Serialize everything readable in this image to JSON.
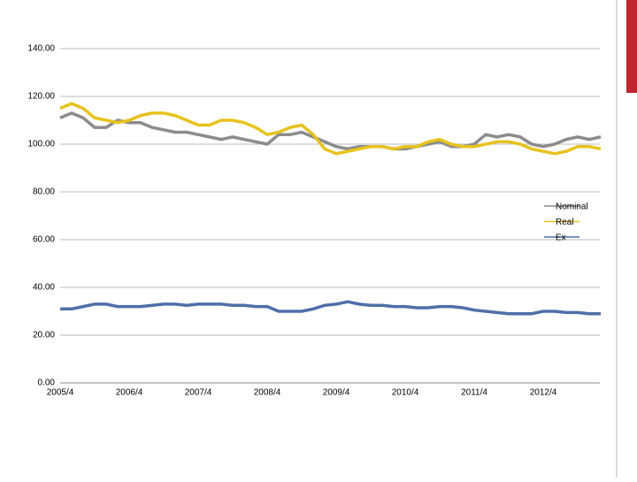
{
  "chart_data": {
    "type": "line",
    "categories": [
      "2005/4",
      null,
      null,
      null,
      null,
      null,
      "2006/4",
      null,
      null,
      null,
      null,
      null,
      "2007/4",
      null,
      null,
      null,
      null,
      null,
      "2008/4",
      null,
      null,
      null,
      null,
      null,
      "2009/4",
      null,
      null,
      null,
      null,
      null,
      "2010/4",
      null,
      null,
      null,
      null,
      null,
      "2011/4",
      null,
      null,
      null,
      null,
      null,
      "2012/4",
      null,
      null,
      null,
      null,
      null
    ],
    "series": [
      {
        "name": "Nominal",
        "color": "#8c8c8c",
        "values": [
          111,
          113,
          111,
          107,
          107,
          110,
          109,
          109,
          107,
          106,
          105,
          105,
          104,
          103,
          102,
          103,
          102,
          101,
          100,
          104,
          104,
          105,
          103,
          101,
          99,
          98,
          99,
          99,
          99,
          98,
          98,
          99,
          100,
          101,
          99,
          99,
          100,
          104,
          103,
          104,
          103,
          100,
          99,
          100,
          102,
          103,
          102,
          103
        ]
      },
      {
        "name": "Real",
        "color": "#e8c21e",
        "values": [
          115,
          117,
          115,
          111,
          110,
          109,
          110,
          112,
          113,
          113,
          112,
          110,
          108,
          108,
          110,
          110,
          109,
          107,
          104,
          105,
          107,
          108,
          104,
          98,
          96,
          97,
          98,
          99,
          99,
          98,
          99,
          99,
          101,
          102,
          100,
          99,
          99,
          100,
          101,
          101,
          100,
          98,
          97,
          96,
          97,
          99,
          99,
          98
        ]
      },
      {
        "name": "Ex",
        "color": "#4f6fa8",
        "values": [
          31,
          31,
          32,
          33,
          33,
          32,
          32,
          32,
          32.5,
          33,
          33,
          32.5,
          33,
          33,
          33,
          32.5,
          32.5,
          32,
          32,
          30,
          30,
          30,
          31,
          32.5,
          33,
          34,
          33,
          32.5,
          32.5,
          32,
          32,
          31.5,
          31.5,
          32,
          32,
          31.5,
          30.5,
          30,
          29.5,
          29,
          29,
          29,
          30,
          30,
          29.5,
          29.5,
          29,
          29
        ]
      }
    ],
    "ylim": [
      0,
      140
    ],
    "yticks": [
      {
        "value": 0,
        "label": "0.00"
      },
      {
        "value": 20,
        "label": "20.00"
      },
      {
        "value": 40,
        "label": "40.00"
      },
      {
        "value": 60,
        "label": "60.00"
      },
      {
        "value": 80,
        "label": "80.00"
      },
      {
        "value": 100,
        "label": "100.00"
      },
      {
        "value": 120,
        "label": "120.00"
      },
      {
        "value": 140,
        "label": "140.00"
      }
    ],
    "grid": true,
    "legend": "right"
  }
}
